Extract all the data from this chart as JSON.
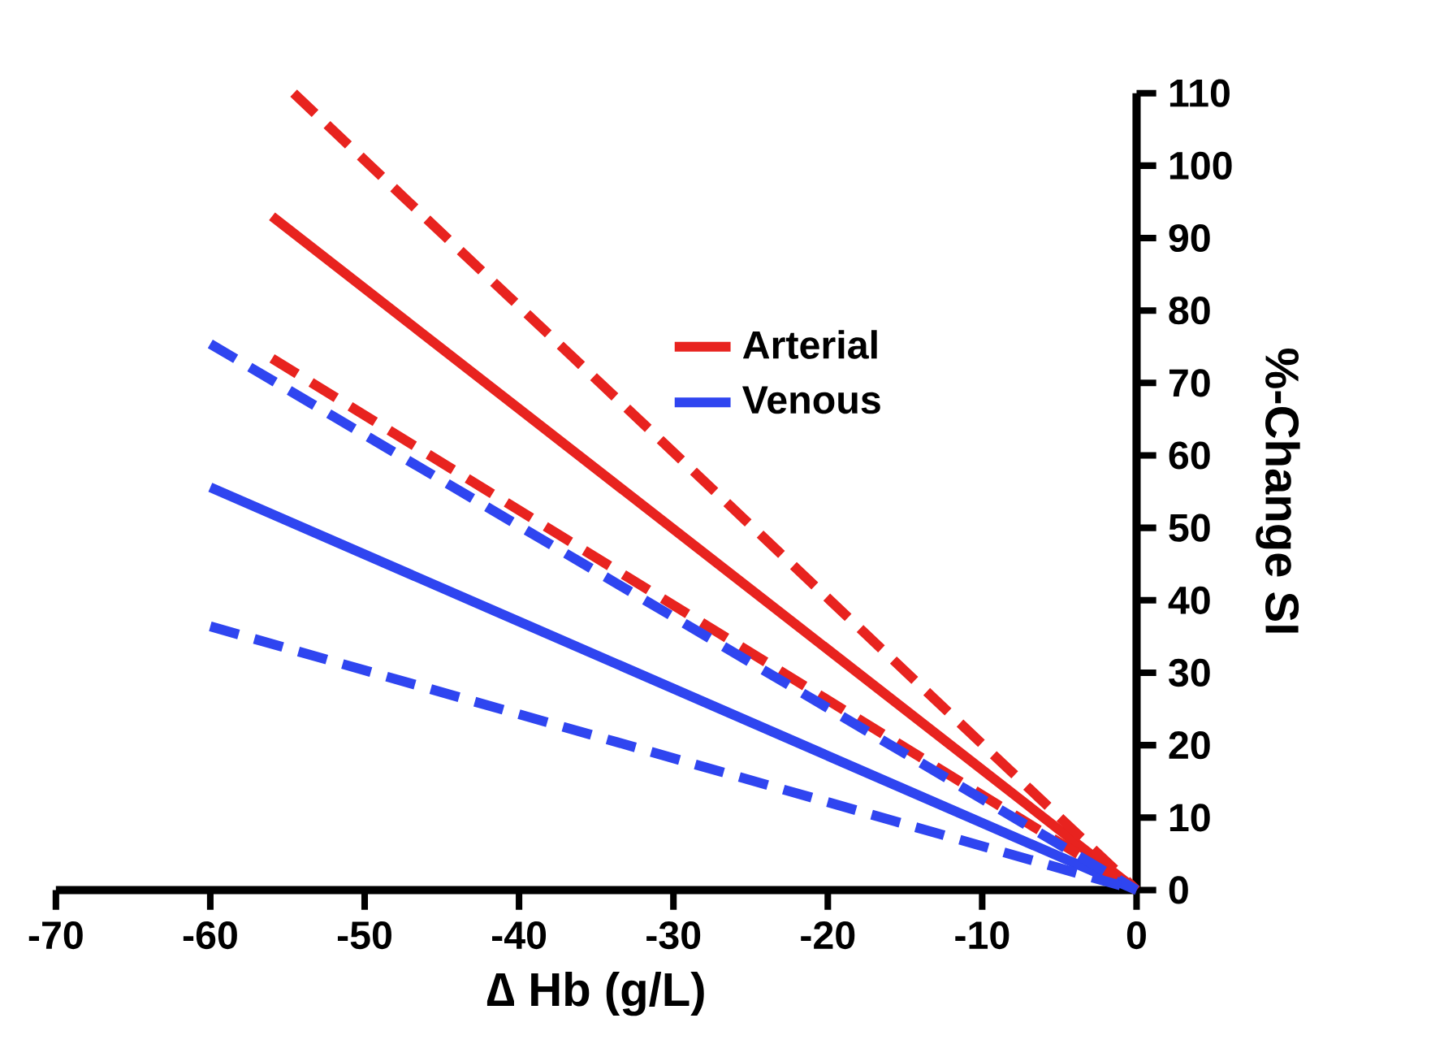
{
  "chart_data": {
    "type": "line",
    "xlabel": "∆ Hb (g/L)",
    "ylabel": "%-Change SI",
    "xlim": [
      -70,
      0
    ],
    "xticks": [
      -70,
      -60,
      -50,
      -40,
      -30,
      -20,
      -10,
      0
    ],
    "ylim": [
      0,
      110
    ],
    "yticks": [
      0,
      10,
      20,
      30,
      40,
      50,
      60,
      70,
      80,
      90,
      100,
      110
    ],
    "grid": false,
    "legend": "top right",
    "marker": "none",
    "series": [
      {
        "name": "Arterial",
        "color": "#e8231f",
        "x": [
          -56,
          0
        ],
        "values": [
          93,
          0
        ],
        "line_style": "solid"
      },
      {
        "name": "Venous",
        "color": "#2f45f0",
        "x": [
          -60,
          0
        ],
        "values": [
          55.6,
          0
        ],
        "line_style": "solid"
      },
      {
        "color": "#e8231f",
        "x": [
          -54.6,
          0
        ],
        "values": [
          110,
          0
        ],
        "line_style": "dashed"
      },
      {
        "color": "#e8231f",
        "x": [
          -56,
          0
        ],
        "values": [
          73.4,
          0
        ],
        "line_style": "dashed"
      },
      {
        "color": "#2f45f0",
        "x": [
          -60,
          0
        ],
        "values": [
          75.4,
          0
        ],
        "line_style": "dashed"
      },
      {
        "color": "#2f45f0",
        "x": [
          -60,
          0
        ],
        "values": [
          36.4,
          0
        ],
        "line_style": "dashed"
      }
    ]
  }
}
